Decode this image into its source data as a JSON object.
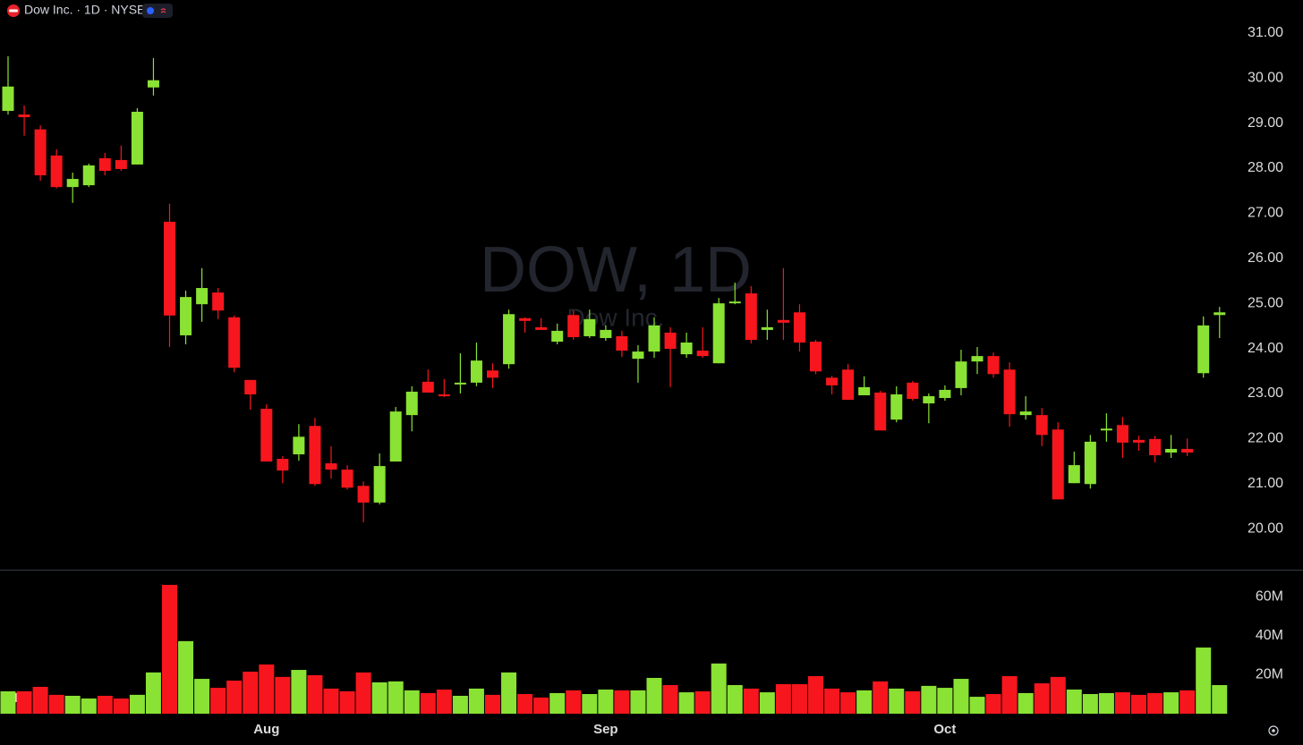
{
  "header": {
    "symbol_title": "Dow Inc. · 1D · NYSE"
  },
  "chart_data": [
    {
      "type": "candlestick",
      "watermark": "DOW, 1D",
      "watermark_subtitle": "Dow Inc.",
      "up_color": "#8ae234",
      "down_color": "#f7161d",
      "categories": [
        null,
        null,
        null,
        null,
        null,
        null,
        null,
        null,
        null,
        null,
        null,
        null,
        null,
        null,
        null,
        null,
        "Aug",
        null,
        null,
        null,
        null,
        null,
        null,
        null,
        null,
        null,
        null,
        null,
        null,
        null,
        null,
        null,
        null,
        null,
        null,
        null,
        null,
        "Sep",
        null,
        null,
        null,
        null,
        null,
        null,
        null,
        null,
        null,
        null,
        null,
        null,
        null,
        null,
        null,
        null,
        null,
        null,
        null,
        null,
        "Oct",
        null,
        null,
        null,
        null,
        null,
        null,
        null,
        null,
        null,
        null,
        null,
        null,
        null,
        null,
        null,
        null,
        null
      ],
      "open": [
        29.27,
        29.19,
        28.86,
        28.28,
        27.58,
        27.62,
        28.22,
        28.18,
        28.08,
        29.79,
        26.81,
        24.29,
        24.98,
        25.24,
        24.69,
        23.3,
        22.66,
        21.55,
        21.65,
        22.28,
        21.45,
        21.31,
        20.95,
        20.58,
        21.49,
        22.52,
        23.26,
        22.98,
        23.2,
        23.24,
        23.51,
        23.65,
        24.67,
        24.47,
        24.15,
        24.74,
        24.27,
        24.23,
        24.27,
        23.77,
        23.93,
        24.35,
        23.87,
        23.95,
        23.67,
        25.0,
        25.22,
        24.41,
        24.63,
        24.8,
        24.15,
        23.35,
        23.53,
        22.96,
        23.02,
        22.42,
        23.24,
        22.78,
        22.9,
        23.12,
        23.71,
        23.83,
        23.53,
        22.52,
        22.52,
        22.2,
        21.01,
        20.99,
        22.18,
        22.3,
        21.97,
        21.99,
        21.69,
        21.77,
        23.45,
        24.74
      ],
      "high": [
        30.48,
        29.39,
        28.95,
        28.42,
        27.9,
        28.1,
        28.34,
        28.5,
        29.33,
        30.44,
        27.21,
        25.28,
        25.78,
        25.34,
        24.73,
        23.3,
        22.76,
        21.61,
        22.32,
        22.46,
        21.83,
        21.41,
        21.05,
        21.67,
        22.7,
        23.16,
        23.53,
        23.32,
        23.89,
        24.13,
        23.67,
        24.86,
        24.69,
        24.67,
        24.55,
        24.84,
        24.86,
        24.51,
        24.39,
        24.07,
        24.69,
        24.47,
        24.35,
        24.47,
        25.12,
        25.46,
        25.38,
        24.86,
        25.78,
        24.98,
        24.19,
        23.39,
        23.65,
        23.38,
        23.06,
        23.16,
        23.28,
        23.0,
        23.18,
        23.97,
        24.03,
        23.91,
        23.69,
        22.94,
        22.68,
        22.36,
        21.71,
        22.08,
        22.56,
        22.48,
        22.06,
        22.06,
        22.08,
        22.0,
        24.71,
        24.92
      ],
      "low": [
        29.19,
        28.72,
        27.72,
        27.55,
        27.23,
        27.58,
        27.84,
        27.94,
        28.08,
        29.61,
        24.03,
        24.09,
        24.59,
        24.65,
        23.47,
        22.64,
        21.49,
        21.01,
        21.51,
        20.95,
        21.11,
        20.87,
        20.14,
        20.54,
        21.49,
        22.16,
        23.02,
        22.92,
        23.0,
        23.16,
        23.12,
        23.55,
        24.35,
        24.41,
        24.09,
        24.19,
        24.23,
        24.17,
        23.81,
        23.24,
        23.79,
        23.14,
        23.79,
        23.79,
        23.67,
        24.98,
        24.11,
        24.19,
        24.19,
        23.93,
        23.43,
        22.98,
        22.86,
        22.96,
        22.18,
        22.36,
        22.84,
        22.34,
        22.84,
        22.96,
        23.43,
        23.35,
        22.26,
        22.42,
        21.83,
        20.65,
        21.01,
        20.89,
        21.93,
        21.57,
        21.73,
        21.47,
        21.57,
        21.61,
        23.35,
        24.23
      ],
      "close": [
        29.81,
        29.13,
        27.84,
        27.58,
        27.76,
        28.06,
        27.94,
        27.98,
        29.25,
        29.95,
        24.73,
        25.14,
        25.34,
        24.84,
        23.57,
        22.98,
        21.49,
        21.29,
        22.04,
        20.99,
        21.31,
        20.91,
        20.58,
        21.39,
        22.6,
        23.04,
        23.02,
        22.94,
        23.24,
        23.73,
        23.35,
        24.76,
        24.61,
        24.41,
        24.39,
        24.25,
        24.65,
        24.41,
        23.95,
        23.93,
        24.51,
        23.99,
        24.13,
        23.83,
        25.0,
        25.04,
        24.19,
        24.47,
        24.57,
        24.13,
        23.49,
        23.18,
        22.86,
        23.14,
        22.18,
        22.98,
        22.88,
        22.94,
        23.08,
        23.71,
        23.83,
        23.43,
        22.54,
        22.6,
        22.08,
        20.65,
        21.41,
        21.93,
        22.22,
        21.91,
        21.91,
        21.63,
        21.77,
        21.69,
        24.51,
        24.8
      ],
      "ylim": [
        19.09,
        31.73
      ],
      "yticks": [
        {
          "value": 20,
          "label": "20.00"
        },
        {
          "value": 21,
          "label": "21.00"
        },
        {
          "value": 22,
          "label": "22.00"
        },
        {
          "value": 23,
          "label": "23.00"
        },
        {
          "value": 24,
          "label": "24.00"
        },
        {
          "value": 25,
          "label": "25.00"
        },
        {
          "value": 26,
          "label": "26.00"
        },
        {
          "value": 27,
          "label": "27.00"
        },
        {
          "value": 28,
          "label": "28.00"
        },
        {
          "value": 29,
          "label": "29.00"
        },
        {
          "value": 30,
          "label": "30.00"
        },
        {
          "value": 31,
          "label": "31.00"
        }
      ]
    },
    {
      "type": "bar",
      "name": "Volume",
      "values": [
        11500000,
        11500000,
        13800000,
        9700000,
        9200000,
        7800000,
        9200000,
        7800000,
        9700000,
        21200000,
        66200000,
        37300000,
        17900000,
        13300000,
        17000000,
        21600000,
        25300000,
        18900000,
        22500000,
        19800000,
        12900000,
        11500000,
        21200000,
        16100000,
        16600000,
        12000000,
        10600000,
        12400000,
        9200000,
        12900000,
        9700000,
        21200000,
        10100000,
        8300000,
        10600000,
        12000000,
        10100000,
        12400000,
        12000000,
        12000000,
        18400000,
        14700000,
        11000000,
        11500000,
        25800000,
        14700000,
        12900000,
        11000000,
        15200000,
        15200000,
        19300000,
        12900000,
        11000000,
        12000000,
        16600000,
        12900000,
        11500000,
        14300000,
        13300000,
        17900000,
        8700000,
        10100000,
        19300000,
        10600000,
        15600000,
        18900000,
        12400000,
        10100000,
        10600000,
        11000000,
        9700000,
        10600000,
        11000000,
        12000000,
        34000000,
        14700000
      ],
      "ylim": [
        0,
        74000000
      ],
      "yticks": [
        {
          "value": 20000000,
          "label": "20M"
        },
        {
          "value": 40000000,
          "label": "40M"
        },
        {
          "value": 60000000,
          "label": "60M"
        }
      ]
    }
  ]
}
